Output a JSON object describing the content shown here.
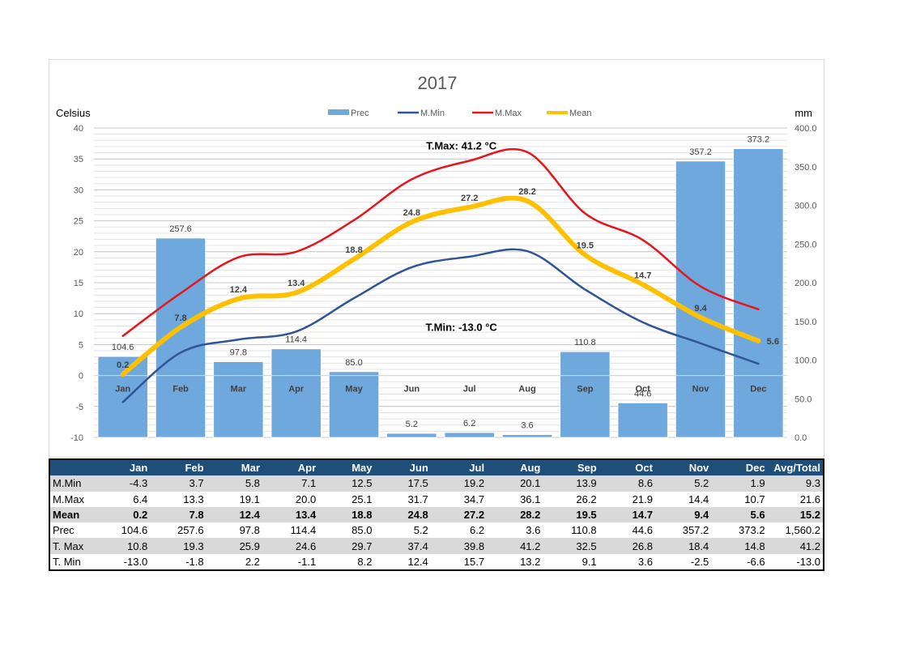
{
  "chart_data": {
    "type": "bar",
    "title": "2017",
    "left_axis_label": "Celsius",
    "right_axis_label": "mm",
    "left_ylim": [
      -10,
      40
    ],
    "left_ticks": [
      "40",
      "35",
      "30",
      "25",
      "20",
      "15",
      "10",
      "5",
      "0",
      "-5",
      "-10"
    ],
    "right_ylim": [
      0,
      400
    ],
    "right_ticks": [
      "400.0",
      "350.0",
      "300.0",
      "250.0",
      "200.0",
      "150.0",
      "100.0",
      "50.0",
      "0.0"
    ],
    "categories": [
      "Jan",
      "Feb",
      "Mar",
      "Apr",
      "May",
      "Jun",
      "Jul",
      "Aug",
      "Sep",
      "Oct",
      "Nov",
      "Dec"
    ],
    "legend": [
      "Prec",
      "M.Min",
      "M.Max",
      "Mean"
    ],
    "legend_position": "top",
    "grid": true,
    "series": [
      {
        "name": "Prec",
        "axis": "right",
        "values": [
          104.6,
          257.6,
          97.8,
          114.4,
          85.0,
          5.2,
          6.2,
          3.6,
          110.8,
          44.6,
          357.2,
          373.2
        ],
        "labels": [
          "104.6",
          "257.6",
          "97.8",
          "114.4",
          "85.0",
          "5.2",
          "6.2",
          "3.6",
          "110.8",
          "44.6",
          "357.2",
          "373.2"
        ],
        "color": "#6fa8dc"
      },
      {
        "name": "M.Min",
        "axis": "left",
        "values": [
          -4.3,
          3.7,
          5.8,
          7.1,
          12.5,
          17.5,
          19.2,
          20.1,
          13.9,
          8.6,
          5.2,
          1.9
        ],
        "color": "#2f5597"
      },
      {
        "name": "M.Max",
        "axis": "left",
        "values": [
          6.4,
          13.3,
          19.1,
          20.0,
          25.1,
          31.7,
          34.7,
          36.1,
          26.2,
          21.9,
          14.4,
          10.7
        ],
        "color": "#e8141b"
      },
      {
        "name": "Mean",
        "axis": "left",
        "values": [
          0.2,
          7.8,
          12.4,
          13.4,
          18.8,
          24.8,
          27.2,
          28.2,
          19.5,
          14.7,
          9.4,
          5.6
        ],
        "labels": [
          "0.2",
          "7.8",
          "12.4",
          "13.4",
          "18.8",
          "24.8",
          "27.2",
          "28.2",
          "19.5",
          "14.7",
          "9.4",
          "5.6"
        ],
        "color": "#ffc000"
      }
    ],
    "annotations": [
      {
        "text": "T.Max: 41.2 °C",
        "x": "Jul",
        "y": 36.5
      },
      {
        "text": "T.Min: -13.0 °C",
        "x": "Jul",
        "y": 7.2
      }
    ]
  },
  "table": {
    "headers": [
      "",
      "Jan",
      "Feb",
      "Mar",
      "Apr",
      "May",
      "Jun",
      "Jul",
      "Aug",
      "Sep",
      "Oct",
      "Nov",
      "Dec",
      "Avg/Total"
    ],
    "rows": [
      {
        "label": "M.Min",
        "values": [
          "-4.3",
          "3.7",
          "5.8",
          "7.1",
          "12.5",
          "17.5",
          "19.2",
          "20.1",
          "13.9",
          "8.6",
          "5.2",
          "1.9",
          "9.3"
        ],
        "shade": true,
        "bold": false
      },
      {
        "label": "M.Max",
        "values": [
          "6.4",
          "13.3",
          "19.1",
          "20.0",
          "25.1",
          "31.7",
          "34.7",
          "36.1",
          "26.2",
          "21.9",
          "14.4",
          "10.7",
          "21.6"
        ],
        "shade": false,
        "bold": false
      },
      {
        "label": "Mean",
        "values": [
          "0.2",
          "7.8",
          "12.4",
          "13.4",
          "18.8",
          "24.8",
          "27.2",
          "28.2",
          "19.5",
          "14.7",
          "9.4",
          "5.6",
          "15.2"
        ],
        "shade": true,
        "bold": true
      },
      {
        "label": "Prec",
        "values": [
          "104.6",
          "257.6",
          "97.8",
          "114.4",
          "85.0",
          "5.2",
          "6.2",
          "3.6",
          "110.8",
          "44.6",
          "357.2",
          "373.2",
          "1,560.2"
        ],
        "shade": false,
        "bold": false
      },
      {
        "label": "T. Max",
        "values": [
          "10.8",
          "19.3",
          "25.9",
          "24.6",
          "29.7",
          "37.4",
          "39.8",
          "41.2",
          "32.5",
          "26.8",
          "18.4",
          "14.8",
          "41.2"
        ],
        "shade": true,
        "bold": false
      },
      {
        "label": "T. Min",
        "values": [
          "-13.0",
          "-1.8",
          "2.2",
          "-1.1",
          "8.2",
          "12.4",
          "15.7",
          "13.2",
          "9.1",
          "3.6",
          "-2.5",
          "-6.6",
          "-13.0"
        ],
        "shade": false,
        "bold": false
      }
    ]
  }
}
